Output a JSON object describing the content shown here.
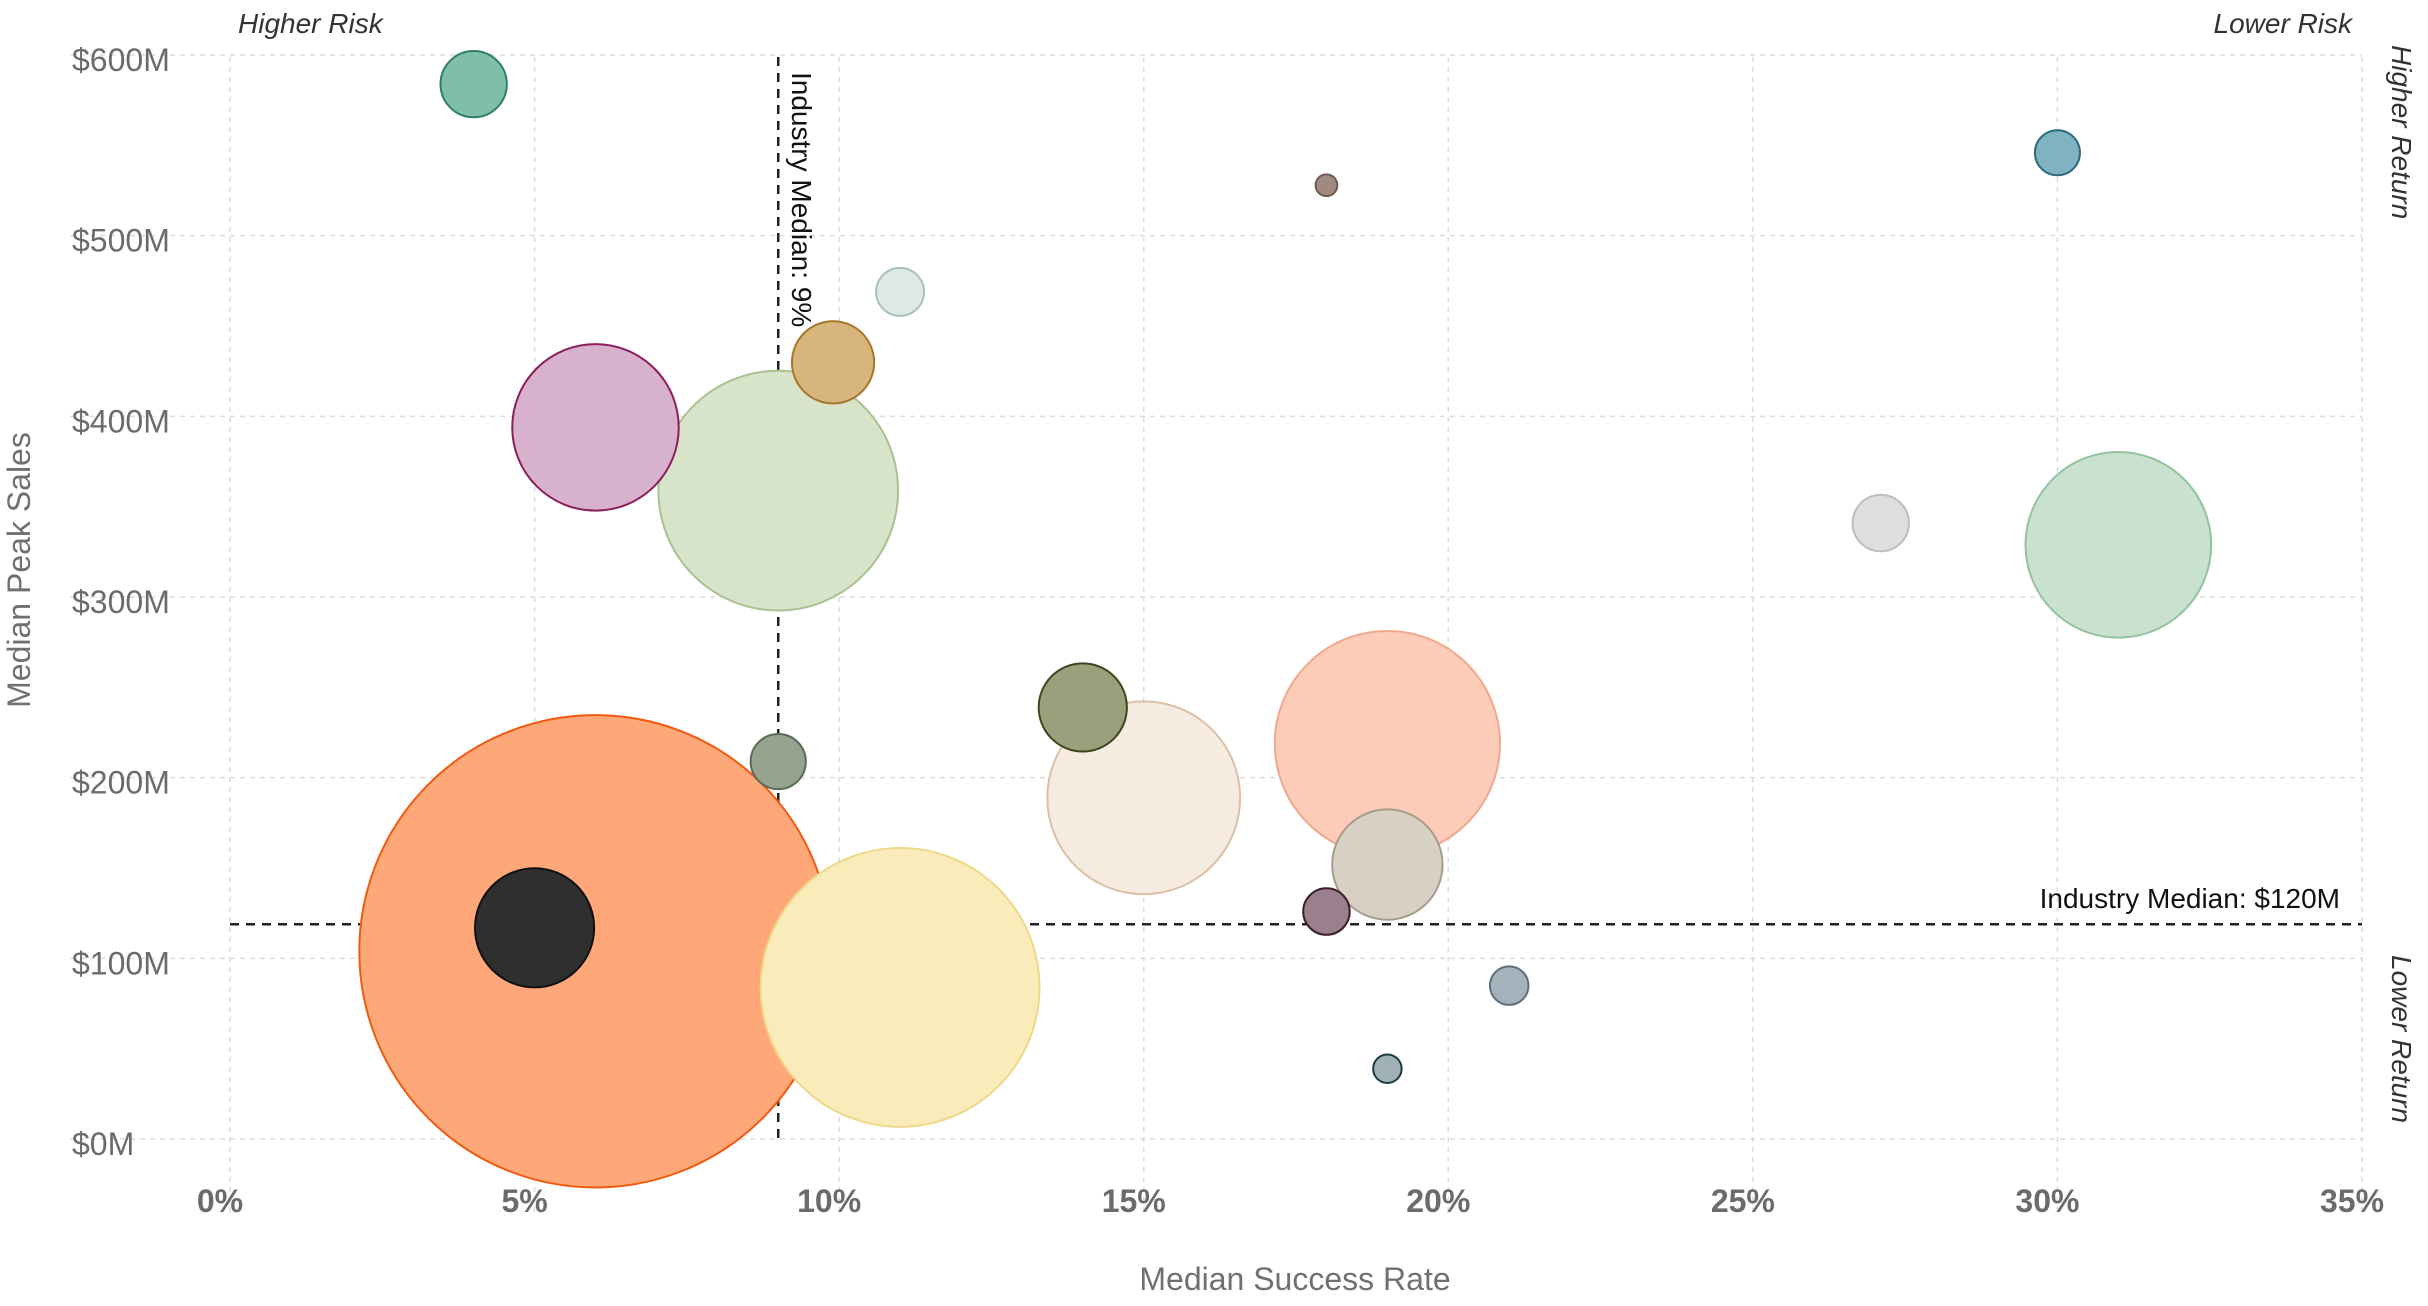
{
  "chart_data": {
    "type": "scatter",
    "title": "",
    "xlabel": "Median Success Rate",
    "ylabel": "Median Peak Sales",
    "xlim": [
      0,
      35
    ],
    "ylim": [
      0,
      600
    ],
    "x_ticks": [
      0,
      5,
      10,
      15,
      20,
      25,
      30,
      35
    ],
    "x_tick_labels": [
      "0%",
      "5%",
      "10%",
      "15%",
      "20%",
      "25%",
      "30%",
      "35%"
    ],
    "y_ticks": [
      0,
      100,
      200,
      300,
      400,
      500,
      600
    ],
    "y_tick_labels": [
      "$0M",
      "$100M",
      "$200M",
      "$300M",
      "$400M",
      "$500M",
      "$600M"
    ],
    "grid": true,
    "bubble_size_note": "bubble area varies by point; size values estimated",
    "reference_lines": [
      {
        "axis": "x",
        "value": 9,
        "label": "Industry Median: 9%"
      },
      {
        "axis": "y",
        "value": 120,
        "label": "Industry Median: $120M"
      }
    ],
    "quadrant_labels": {
      "top_left": "Higher Risk",
      "top_right": "Lower Risk",
      "right_top": "Higher Return",
      "right_bottom": "Lower Return"
    },
    "points": [
      {
        "x": 4.0,
        "y": 585,
        "size": 6.5,
        "color": "#7fbfaa",
        "stroke": "#2f7f62"
      },
      {
        "x": 30.0,
        "y": 547,
        "size": 3.0,
        "color": "#7fb3c2",
        "stroke": "#2c6b7e"
      },
      {
        "x": 18.0,
        "y": 529,
        "size": 0.7,
        "color": "#a08a80",
        "stroke": "#6e5a50"
      },
      {
        "x": 11.0,
        "y": 470,
        "size": 3.4,
        "color": "#dde9e2",
        "stroke": "#a9c1b5"
      },
      {
        "x": 9.9,
        "y": 431,
        "size": 10.0,
        "color": "#d7b57d",
        "stroke": "#a5782b"
      },
      {
        "x": 6.0,
        "y": 395,
        "size": 41.0,
        "color": "#d8b2cd",
        "stroke": "#8a1f5e"
      },
      {
        "x": 9.0,
        "y": 360,
        "size": 85.0,
        "color": "#d8e4c9",
        "stroke": "#a9c190"
      },
      {
        "x": 27.1,
        "y": 342,
        "size": 4.7,
        "color": "#dedede",
        "stroke": "#bdbdbd"
      },
      {
        "x": 31.0,
        "y": 330,
        "size": 51.0,
        "color": "#c9e2cf",
        "stroke": "#93c29e"
      },
      {
        "x": 14.0,
        "y": 240,
        "size": 11.5,
        "color": "#9aa07b",
        "stroke": "#3e4620"
      },
      {
        "x": 9.0,
        "y": 210,
        "size": 4.5,
        "color": "#96a38f",
        "stroke": "#5a6a54"
      },
      {
        "x": 19.0,
        "y": 220,
        "size": 75.0,
        "color": "#fdccb8",
        "stroke": "#eea98c"
      },
      {
        "x": 15.0,
        "y": 190,
        "size": 55.0,
        "color": "#f6ebe1",
        "stroke": "#dbc0a6"
      },
      {
        "x": 19.0,
        "y": 153,
        "size": 18.0,
        "color": "#d9d0c4",
        "stroke": "#a79c8c"
      },
      {
        "x": 18.0,
        "y": 127,
        "size": 3.2,
        "color": "#9a7f8c",
        "stroke": "#3d1f2c"
      },
      {
        "x": 5.0,
        "y": 118,
        "size": 21.0,
        "color": "#2f2f2f",
        "stroke": "#111111"
      },
      {
        "x": 6.0,
        "y": 105,
        "size": 330.0,
        "color": "#fea87a",
        "stroke": "#f05a0f"
      },
      {
        "x": 11.0,
        "y": 85,
        "size": 115.0,
        "color": "#f9ebba",
        "stroke": "#eed889"
      },
      {
        "x": 21.0,
        "y": 86,
        "size": 2.2,
        "color": "#a4b2bb",
        "stroke": "#5f6f7a"
      },
      {
        "x": 19.0,
        "y": 40,
        "size": 1.2,
        "color": "#9fb1b7",
        "stroke": "#1f3a44"
      }
    ]
  }
}
